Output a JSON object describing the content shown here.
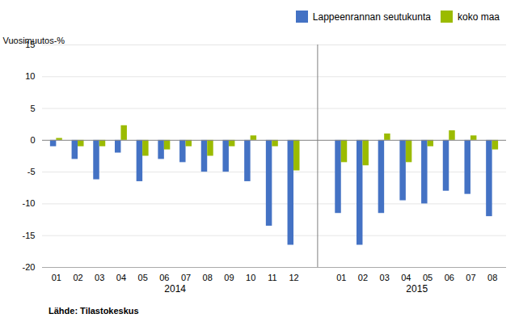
{
  "chart_data": {
    "type": "bar",
    "categories": [
      "01",
      "02",
      "03",
      "04",
      "05",
      "06",
      "07",
      "08",
      "09",
      "10",
      "11",
      "12",
      "01",
      "02",
      "03",
      "04",
      "05",
      "06",
      "07",
      "08"
    ],
    "groups": [
      {
        "label": "2014",
        "size": 12
      },
      {
        "label": "2015",
        "size": 8
      }
    ],
    "series": [
      {
        "name": "Lappeenrannan seutukunta",
        "color": "#4472C4",
        "values": [
          -1.0,
          -3.0,
          -6.2,
          -2.0,
          -6.5,
          -3.0,
          -3.5,
          -5.0,
          -5.0,
          -6.5,
          -13.5,
          -16.5,
          -11.5,
          -16.5,
          -11.5,
          -9.5,
          -10.0,
          -8.0,
          -8.5,
          -12.0
        ]
      },
      {
        "name": "koko maa",
        "color": "#9BBB00",
        "values": [
          0.3,
          -1.0,
          -1.0,
          2.3,
          -2.5,
          -1.5,
          -1.0,
          -2.5,
          -1.0,
          0.7,
          -1.0,
          -4.8,
          -3.5,
          -4.0,
          1.0,
          -3.5,
          -1.0,
          1.5,
          0.7,
          -1.5
        ]
      }
    ],
    "ylabel": "Vuosimuutos-%",
    "ylim": [
      -20,
      15
    ],
    "yticks": [
      -20,
      -15,
      -10,
      -5,
      0,
      5,
      10,
      15
    ],
    "grid": true,
    "legend": "upper right",
    "divider_color": "#808080",
    "caption": "Lähde: Tilastokeskus"
  }
}
